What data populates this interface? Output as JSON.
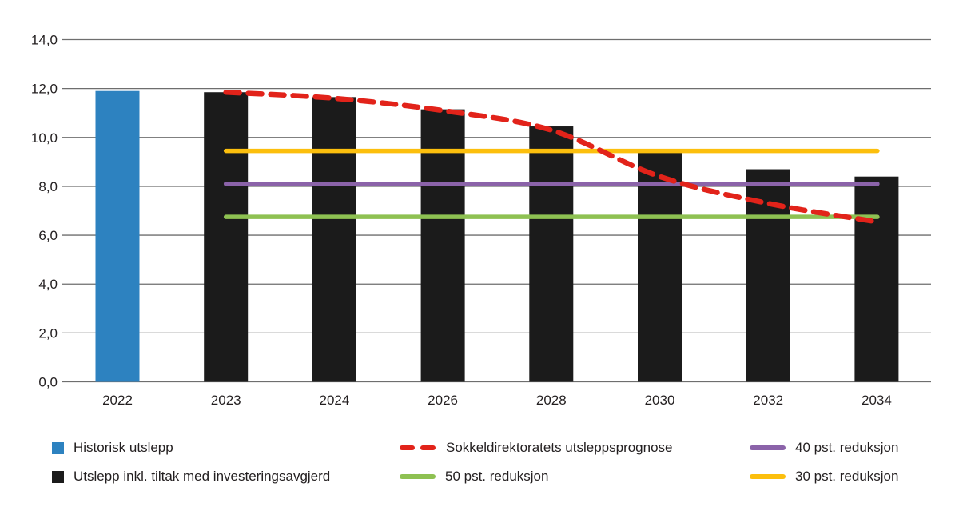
{
  "chart_data": {
    "type": "bar",
    "title": "",
    "xlabel": "",
    "ylabel": "",
    "ylim": [
      0,
      14
    ],
    "y_ticks": [
      "0,0",
      "2,0",
      "4,0",
      "6,0",
      "8,0",
      "10,0",
      "12,0",
      "14,0"
    ],
    "y_tick_values": [
      0,
      2,
      4,
      6,
      8,
      10,
      12,
      14
    ],
    "grid": "horizontal",
    "categories": [
      "2022",
      "2023",
      "2024",
      "2026",
      "2028",
      "2030",
      "2032",
      "2034"
    ],
    "series": [
      {
        "name": "Historisk utslepp",
        "type": "bar",
        "color": "#2d82c0",
        "values": [
          11.9,
          null,
          null,
          null,
          null,
          null,
          null,
          null
        ]
      },
      {
        "name": "Utslepp inkl. tiltak med investeringsavgjerd",
        "type": "bar",
        "color": "#1b1b1b",
        "values": [
          null,
          11.85,
          11.65,
          11.15,
          10.45,
          9.4,
          8.7,
          8.4
        ]
      },
      {
        "name": "Sokkeldirektoratets utsleppsprognose",
        "type": "dashed-line",
        "color": "#e2231a",
        "values": [
          null,
          11.85,
          11.6,
          11.1,
          10.3,
          8.4,
          7.3,
          6.55
        ]
      },
      {
        "name": "30 pst. reduksjon",
        "type": "reference-line",
        "color": "#fcbf0d",
        "value": 9.45
      },
      {
        "name": "40 pst. reduksjon",
        "type": "reference-line",
        "color": "#8b63a9",
        "value": 8.1
      },
      {
        "name": "50 pst. reduksjon",
        "type": "reference-line",
        "color": "#8ec152",
        "value": 6.75
      }
    ],
    "axis_color": "#6e6e6e",
    "text_color": "#231f20"
  },
  "legend": {
    "rows": [
      [
        {
          "label": "Historisk utslepp",
          "swatch": "square",
          "color": "#2d82c0"
        },
        {
          "label": "Sokkeldirektoratets utsleppsprognose",
          "swatch": "dashes",
          "color": "#e2231a"
        },
        {
          "label": "40 pst. reduksjon",
          "swatch": "line",
          "color": "#8b63a9"
        }
      ],
      [
        {
          "label": "Utslepp inkl. tiltak med investeringsavgjerd",
          "swatch": "square",
          "color": "#1b1b1b"
        },
        {
          "label": "50 pst. reduksjon",
          "swatch": "line",
          "color": "#8ec152"
        },
        {
          "label": "30 pst. reduksjon",
          "swatch": "line",
          "color": "#fcbf0d"
        }
      ]
    ]
  }
}
